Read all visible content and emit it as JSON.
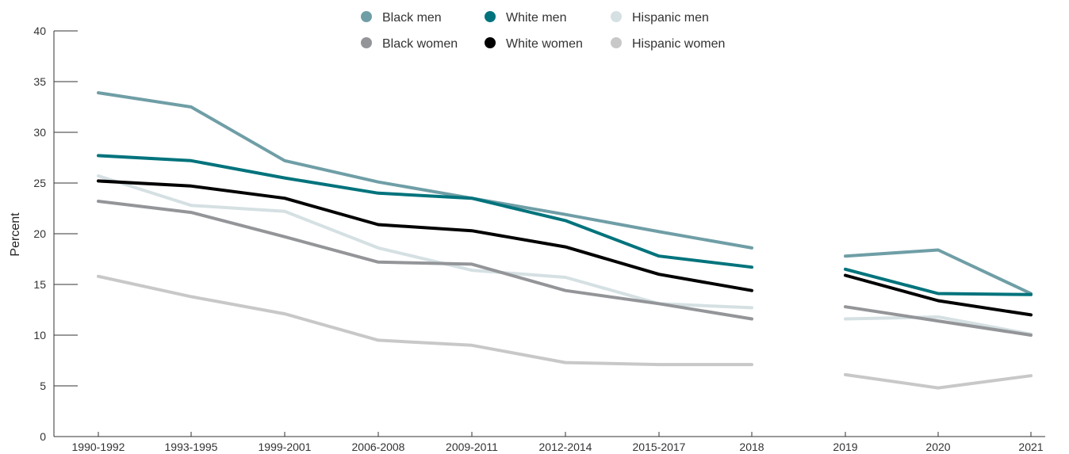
{
  "chart_data": {
    "type": "line",
    "title": "",
    "xlabel": "",
    "ylabel": "Percent",
    "ylim": [
      0,
      40
    ],
    "yticks": [
      "0",
      "5",
      "10",
      "15",
      "20",
      "25",
      "30",
      "35",
      "40"
    ],
    "categories": [
      "1990-1992",
      "1993-1995",
      "1999-2001",
      "2006-2008",
      "2009-2011",
      "2012-2014",
      "2015-2017",
      "2018",
      "2019",
      "2020",
      "2021"
    ],
    "grid": false,
    "legend_position": "top-center",
    "series": [
      {
        "name": "Black men",
        "color": "#6f9ea6",
        "values": [
          33.9,
          32.5,
          27.2,
          25.1,
          23.5,
          21.9,
          20.2,
          18.6,
          17.8,
          18.4,
          14.1
        ]
      },
      {
        "name": "White men",
        "color": "#00737c",
        "values": [
          27.7,
          27.2,
          25.5,
          24.0,
          23.5,
          21.3,
          17.8,
          16.7,
          16.5,
          14.1,
          14.0
        ]
      },
      {
        "name": "Hispanic men",
        "color": "#d5e0e3",
        "values": [
          25.7,
          22.8,
          22.2,
          18.6,
          16.4,
          15.7,
          13.1,
          12.7,
          11.6,
          11.8,
          10.1
        ]
      },
      {
        "name": "Black women",
        "color": "#939598",
        "values": [
          23.2,
          22.1,
          19.7,
          17.2,
          17.0,
          14.4,
          13.1,
          11.6,
          12.8,
          11.4,
          10.0
        ]
      },
      {
        "name": "White women",
        "color": "#000000",
        "values": [
          25.2,
          24.7,
          23.5,
          20.9,
          20.3,
          18.7,
          16.0,
          14.4,
          15.9,
          13.4,
          12.0
        ]
      },
      {
        "name": "Hispanic women",
        "color": "#c8c8c8",
        "values": [
          15.8,
          13.8,
          12.1,
          9.5,
          9.0,
          7.3,
          7.1,
          7.1,
          6.1,
          4.8,
          6.0
        ]
      }
    ],
    "gaps_after_index": [
      7
    ]
  }
}
